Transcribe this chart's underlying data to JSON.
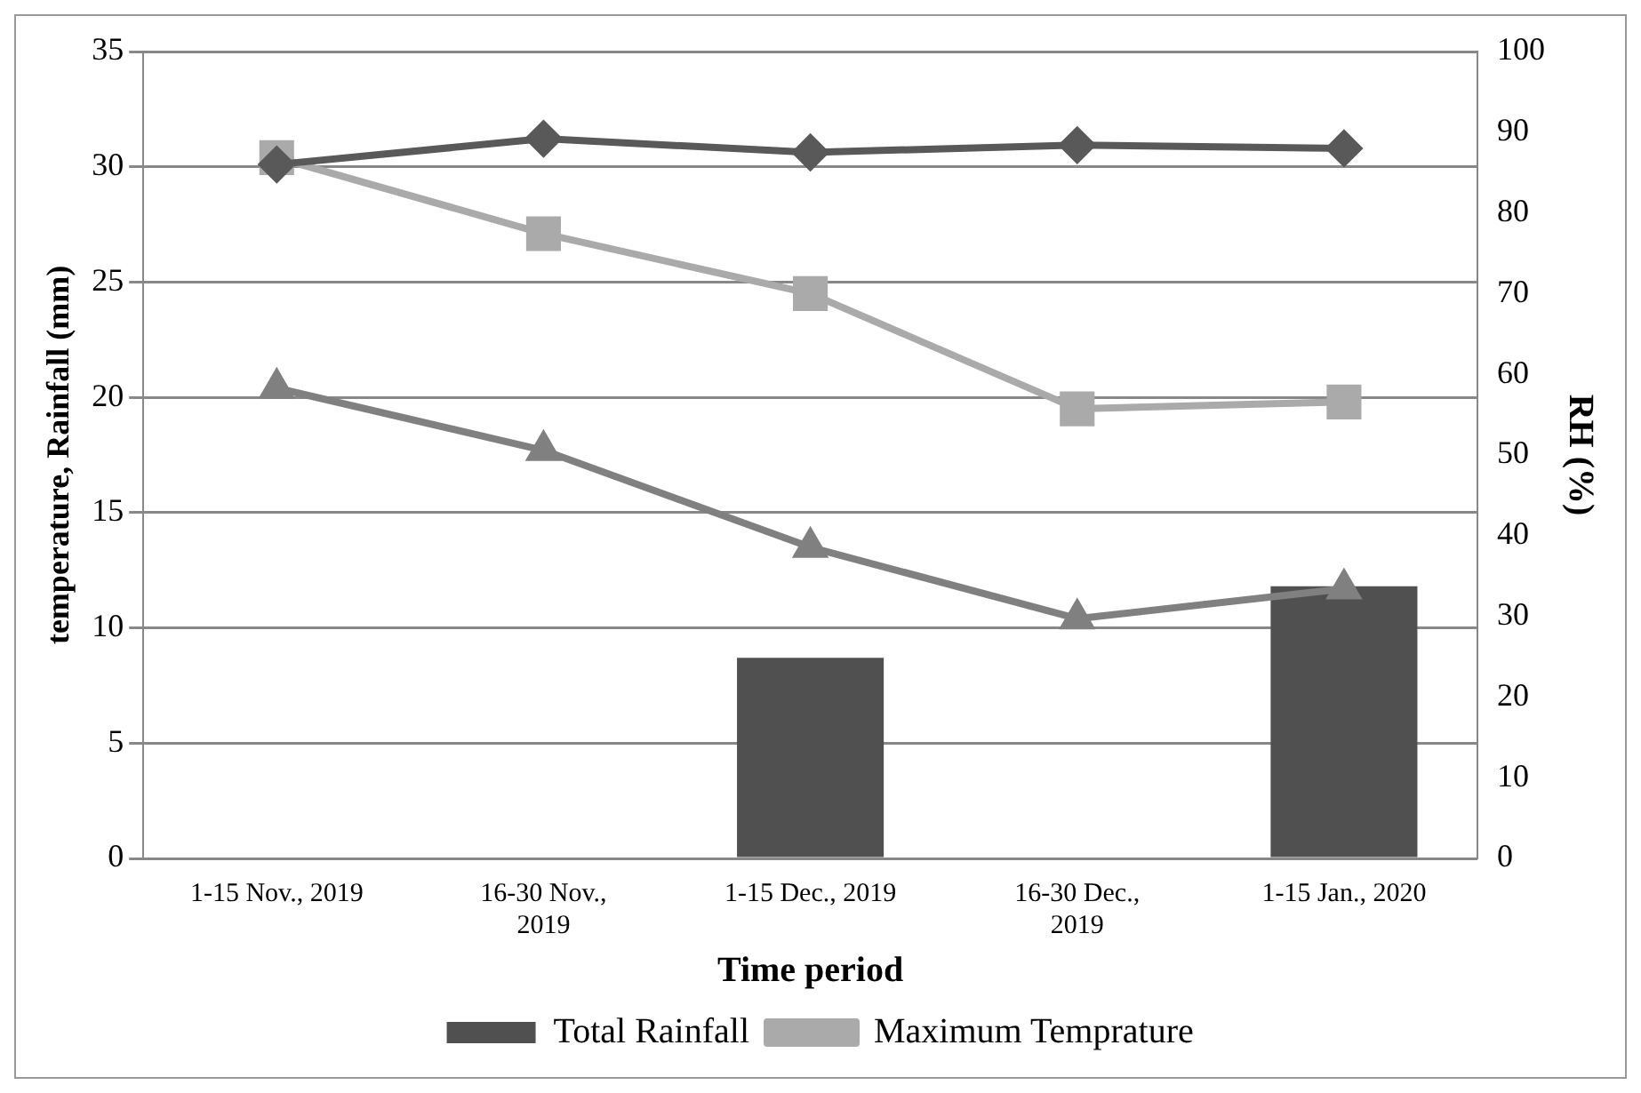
{
  "chart_data": {
    "type": "bar",
    "xlabel": "Time period",
    "ylabel": "temperature, Rainfall (mm)",
    "y2label": "RH (%)",
    "categories": [
      "1-15 Nov., 2019",
      "16-30 Nov., 2019",
      "1-15 Dec., 2019",
      "16-30 Dec., 2019",
      "1-15 Jan., 2020"
    ],
    "series": [
      {
        "name": "Total Rainfall",
        "color": "#505050",
        "values": [
          0,
          0,
          8.7,
          0,
          11.8
        ]
      },
      {
        "type": "line",
        "color": "#595959",
        "marker": "diamond",
        "axis": "y2",
        "values": [
          86,
          89.2,
          87.5,
          88.4,
          88
        ]
      },
      {
        "name": "Maximum Temprature",
        "type": "line",
        "color": "#aaaaaa",
        "marker": "square",
        "values": [
          30.4,
          27.1,
          24.5,
          19.5,
          19.8
        ]
      },
      {
        "type": "line",
        "color": "#808080",
        "marker": "triangle",
        "values": [
          20.4,
          17.7,
          13.5,
          10.4,
          11.7
        ]
      }
    ],
    "ylim": [
      0,
      35
    ],
    "yticks": [
      0,
      5,
      10,
      15,
      20,
      25,
      30,
      35
    ],
    "y2lim": [
      0,
      100
    ],
    "y2ticks": [
      0,
      10,
      20,
      30,
      40,
      50,
      60,
      70,
      80,
      90,
      100
    ],
    "grid": "y",
    "legend": "bottom"
  }
}
